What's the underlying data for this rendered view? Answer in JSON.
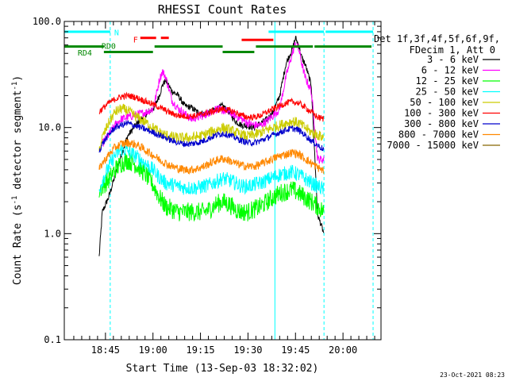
{
  "chart_data": {
    "type": "line",
    "title": "RHESSI Count Rates",
    "xlabel": "Start Time (13-Sep-03 18:32:02)",
    "ylabel_main": "Count Rate (s",
    "ylabel_sup1": "-1",
    "ylabel_mid": " detector segment",
    "ylabel_sup2": "-1",
    "ylabel_end": ")",
    "y_scale": "log",
    "ylim": [
      0.1,
      100
    ],
    "xlim_minutes": [
      0,
      100
    ],
    "x_ticks": [
      {
        "label": "18:45",
        "t": 13
      },
      {
        "label": "19:00",
        "t": 28
      },
      {
        "label": "19:15",
        "t": 43
      },
      {
        "label": "19:30",
        "t": 58
      },
      {
        "label": "19:45",
        "t": 73
      },
      {
        "label": "20:00",
        "t": 88
      }
    ],
    "y_ticks": [
      {
        "label": "0.1",
        "v": 0.1
      },
      {
        "label": "1.0",
        "v": 1
      },
      {
        "label": "10.0",
        "v": 10
      },
      {
        "label": "100.0",
        "v": 100
      }
    ],
    "legend": {
      "header1": "Det 1f,3f,4f,5f,6f,9f,",
      "header2": "FDecim 1, Att 0",
      "placement": "right"
    },
    "series": [
      {
        "name": "3 - 6 keV",
        "color": "#000000",
        "x": [
          11,
          12,
          14,
          16,
          18,
          20,
          22,
          24,
          26,
          28,
          29,
          30,
          31,
          32,
          34,
          36,
          38,
          40,
          42,
          44,
          46,
          48,
          50,
          52,
          54,
          56,
          58,
          60,
          62,
          64,
          66,
          68,
          70,
          72,
          73,
          74,
          75,
          76,
          78,
          80,
          82
        ],
        "values": [
          0.6,
          1.6,
          2.2,
          3.5,
          5.5,
          8.3,
          10,
          12,
          13.5,
          15,
          17,
          20,
          25,
          28,
          22,
          20,
          16,
          15.5,
          14,
          13.5,
          14,
          15,
          16,
          14,
          11.5,
          10.5,
          10.3,
          10,
          11,
          12,
          14,
          20,
          40,
          55,
          70,
          60,
          45,
          40,
          25,
          1.5,
          1.0
        ]
      },
      {
        "name": "6 - 12 keV",
        "color": "#ff00ff",
        "x": [
          12,
          14,
          16,
          18,
          20,
          22,
          24,
          26,
          28,
          29,
          30,
          31,
          32,
          34,
          36,
          38,
          40,
          42,
          44,
          46,
          48,
          50,
          52,
          54,
          56,
          58,
          60,
          62,
          64,
          66,
          68,
          70,
          72,
          73,
          74,
          75,
          76,
          78,
          80,
          82
        ],
        "values": [
          7,
          8.5,
          10.5,
          12,
          12.5,
          13,
          13.5,
          14,
          15,
          20,
          28,
          34,
          30,
          18,
          15,
          13.5,
          12,
          12.5,
          13,
          14,
          15,
          14.5,
          14,
          13,
          12,
          11,
          10.5,
          10.5,
          11.5,
          13,
          15,
          30,
          50,
          62,
          55,
          40,
          30,
          22,
          5,
          5
        ]
      },
      {
        "name": "12 - 25 keV",
        "color": "#00ff00",
        "x": [
          11,
          12,
          14,
          16,
          18,
          20,
          22,
          24,
          26,
          28,
          30,
          32,
          34,
          36,
          38,
          40,
          42,
          44,
          46,
          48,
          50,
          52,
          54,
          56,
          58,
          60,
          62,
          64,
          66,
          68,
          70,
          72,
          74,
          76,
          78,
          80,
          82
        ],
        "values": [
          2.5,
          2.8,
          3.2,
          4.0,
          4.6,
          4.9,
          4.6,
          4.1,
          3.5,
          2.9,
          2.2,
          1.8,
          1.7,
          1.6,
          1.6,
          1.6,
          1.6,
          1.6,
          1.7,
          1.9,
          2.0,
          1.9,
          1.7,
          1.6,
          1.6,
          1.7,
          1.8,
          2.0,
          2.2,
          2.4,
          2.5,
          2.6,
          2.4,
          2.2,
          2.0,
          1.8,
          1.6
        ]
      },
      {
        "name": "25 - 50 keV",
        "color": "#00ffff",
        "x": [
          11,
          12,
          14,
          16,
          18,
          20,
          22,
          24,
          26,
          28,
          30,
          32,
          34,
          36,
          38,
          40,
          42,
          44,
          46,
          48,
          50,
          52,
          54,
          56,
          58,
          60,
          62,
          64,
          66,
          68,
          70,
          72,
          74,
          76,
          78,
          80,
          82
        ],
        "values": [
          2.5,
          3.2,
          4.2,
          5.5,
          6.2,
          6.0,
          5.5,
          5.0,
          4.5,
          4.0,
          3.4,
          3.0,
          2.9,
          2.8,
          2.7,
          2.7,
          2.7,
          2.8,
          2.9,
          3.1,
          3.3,
          3.2,
          3.0,
          2.8,
          2.8,
          2.9,
          3.0,
          3.2,
          3.4,
          3.6,
          3.7,
          3.8,
          3.6,
          3.3,
          3.0,
          2.8,
          2.6
        ]
      },
      {
        "name": "50 - 100 keV",
        "color": "#cccc00",
        "x": [
          11,
          12,
          14,
          16,
          18,
          20,
          22,
          24,
          26,
          28,
          30,
          32,
          34,
          36,
          38,
          40,
          42,
          44,
          46,
          48,
          50,
          52,
          54,
          56,
          58,
          60,
          62,
          64,
          66,
          68,
          70,
          72,
          74,
          76,
          78,
          80,
          82
        ],
        "values": [
          6,
          8,
          11,
          14,
          15,
          14.5,
          13,
          12,
          11,
          10,
          9,
          8.5,
          8.2,
          8.0,
          8.0,
          8.0,
          8.2,
          8.5,
          9,
          9.5,
          10,
          9.5,
          9.0,
          8.5,
          8.3,
          8.5,
          9,
          9.5,
          10,
          10.5,
          11,
          11.5,
          11,
          10,
          9,
          8.5,
          8
        ]
      },
      {
        "name": "100 - 300 keV",
        "color": "#ff0000",
        "x": [
          11,
          12,
          14,
          16,
          18,
          20,
          22,
          24,
          26,
          28,
          30,
          32,
          34,
          36,
          38,
          40,
          42,
          44,
          46,
          48,
          50,
          52,
          54,
          56,
          58,
          60,
          62,
          64,
          66,
          68,
          70,
          72,
          74,
          76,
          78,
          80,
          82
        ],
        "values": [
          14,
          15,
          17,
          18.5,
          19.5,
          20,
          19.5,
          18.5,
          17.5,
          16.5,
          15.5,
          14.5,
          13.5,
          13,
          12.8,
          12.8,
          13,
          13.5,
          14,
          14.5,
          15,
          14.5,
          14,
          13,
          12.5,
          12.5,
          13,
          14,
          15,
          16,
          17,
          17.5,
          17,
          15.5,
          14,
          12.5,
          12
        ]
      },
      {
        "name": "300 - 800 keV",
        "color": "#0000cc",
        "x": [
          11,
          12,
          14,
          16,
          18,
          20,
          22,
          24,
          26,
          28,
          30,
          32,
          34,
          36,
          38,
          40,
          42,
          44,
          46,
          48,
          50,
          52,
          54,
          56,
          58,
          60,
          62,
          64,
          66,
          68,
          70,
          72,
          74,
          76,
          78,
          80,
          82
        ],
        "values": [
          6,
          7,
          8.5,
          10,
          10.5,
          11,
          10.5,
          10,
          9.5,
          9,
          8.5,
          8,
          7.5,
          7.2,
          7.0,
          7.0,
          7.2,
          7.5,
          8,
          8.5,
          8.8,
          8.5,
          8,
          7.5,
          7.2,
          7.2,
          7.5,
          8,
          8.5,
          9,
          9.5,
          9.8,
          9.5,
          8.5,
          7.5,
          6.8,
          6.2
        ]
      },
      {
        "name": "800 - 7000 keV",
        "color": "#ff8800",
        "x": [
          11,
          12,
          14,
          16,
          18,
          20,
          22,
          24,
          26,
          28,
          30,
          32,
          34,
          36,
          38,
          40,
          42,
          44,
          46,
          48,
          50,
          52,
          54,
          56,
          58,
          60,
          62,
          64,
          66,
          68,
          70,
          72,
          74,
          76,
          78,
          80,
          82
        ],
        "values": [
          4,
          4.6,
          5.5,
          6.5,
          7.0,
          7.2,
          7.0,
          6.6,
          6.0,
          5.5,
          5.0,
          4.6,
          4.3,
          4.1,
          4.0,
          4.0,
          4.1,
          4.3,
          4.6,
          4.9,
          5.1,
          4.9,
          4.6,
          4.4,
          4.3,
          4.3,
          4.5,
          4.8,
          5.1,
          5.4,
          5.6,
          5.8,
          5.6,
          5.1,
          4.6,
          4.2,
          3.9
        ]
      },
      {
        "name": "7000 - 15000 keV",
        "color": "#886600",
        "x": [],
        "values": []
      }
    ],
    "attenuator_bars": [
      {
        "label": "N",
        "color": "#00ffff",
        "label_t": 16.5,
        "label_v": 79,
        "segments": [
          [
            0,
            14.5,
            80
          ],
          [
            64.5,
            82,
            80
          ],
          [
            82.5,
            97.5,
            80
          ]
        ]
      },
      {
        "label": "F",
        "color": "#ff0000",
        "label_t": 22.5,
        "label_v": 68,
        "segments": [
          [
            24,
            29,
            70
          ],
          [
            30.5,
            33,
            70
          ],
          [
            56,
            66,
            67
          ]
        ]
      },
      {
        "label": "RD0",
        "color": "#008800",
        "label_t": 14,
        "label_v": 59,
        "segments": [
          [
            0,
            12.5,
            58
          ],
          [
            28.5,
            50,
            58
          ],
          [
            60.5,
            78.5,
            58
          ],
          [
            79,
            97,
            58
          ]
        ]
      },
      {
        "label": "RD4",
        "color": "#008800",
        "label_t": 6.5,
        "label_v": 51,
        "segments": [
          [
            12.5,
            28,
            51.5
          ],
          [
            50,
            60,
            51.5
          ]
        ]
      }
    ],
    "vertical_markers": [
      {
        "t": 0,
        "color": "#00ffff",
        "style": "solid"
      },
      {
        "t": 14.5,
        "color": "#00ffff",
        "style": "dashed"
      },
      {
        "t": 66.5,
        "color": "#00ffff",
        "style": "solid"
      },
      {
        "t": 82,
        "color": "#00ffff",
        "style": "dashed"
      },
      {
        "t": 97.5,
        "color": "#00ffff",
        "style": "dashed"
      }
    ],
    "footer_date": "23-Oct-2021 08:23"
  }
}
